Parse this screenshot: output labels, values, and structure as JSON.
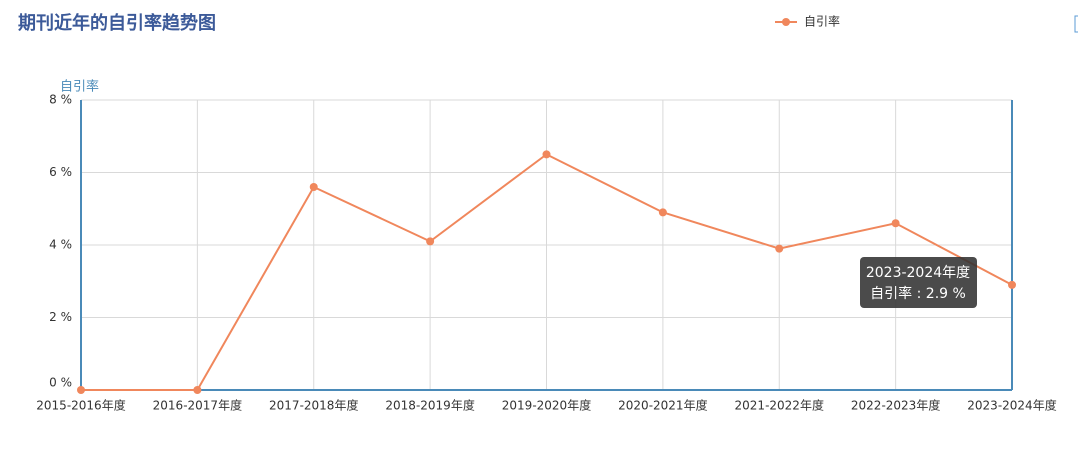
{
  "chart_data": {
    "type": "line",
    "title": "期刊近年的自引率趋势图",
    "y_axis_label": "自引率",
    "categories": [
      "2015-2016年度",
      "2016-2017年度",
      "2017-2018年度",
      "2018-2019年度",
      "2019-2020年度",
      "2020-2021年度",
      "2021-2022年度",
      "2022-2023年度",
      "2023-2024年度"
    ],
    "series": [
      {
        "name": "自引率",
        "color": "#f0875c",
        "values": [
          0,
          0,
          5.6,
          4.1,
          6.5,
          4.9,
          3.9,
          4.6,
          2.9
        ]
      }
    ],
    "ylim": [
      0,
      8
    ],
    "yticks": [
      {
        "value": 0,
        "label": "0 %"
      },
      {
        "value": 2,
        "label": "2 %"
      },
      {
        "value": 4,
        "label": "4 %"
      },
      {
        "value": 6,
        "label": "6 %"
      },
      {
        "value": 8,
        "label": "8 %"
      }
    ],
    "grid": true,
    "legend": "top",
    "tooltip": {
      "title": "2023-2024年度",
      "text": "自引率 : 2.9 %"
    }
  }
}
